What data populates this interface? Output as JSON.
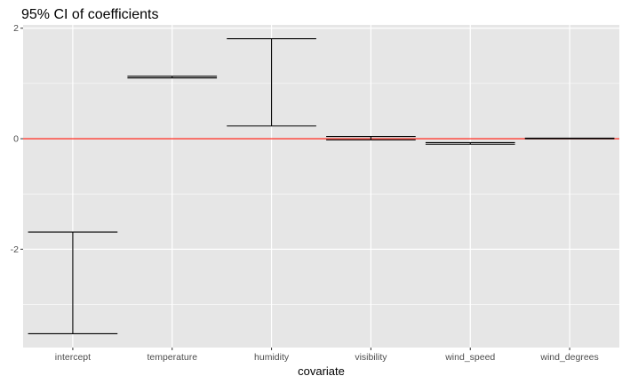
{
  "chart_data": {
    "type": "errorbar",
    "title": "95% CI of coefficients",
    "xlabel": "covariate",
    "ylabel": "",
    "categories": [
      "intercept",
      "temperature",
      "humidity",
      "visibility",
      "wind_speed",
      "wind_degrees"
    ],
    "intervals": [
      {
        "lower": -3.53,
        "upper": -1.69
      },
      {
        "lower": 1.1,
        "upper": 1.13
      },
      {
        "lower": 0.23,
        "upper": 1.81
      },
      {
        "lower": -0.02,
        "upper": 0.04
      },
      {
        "lower": -0.1,
        "upper": -0.07
      },
      {
        "lower": 0.0,
        "upper": 0.01
      }
    ],
    "yticks": [
      -2,
      0,
      2
    ],
    "ylim": [
      -3.78,
      2.06
    ],
    "reference_line": {
      "y": 0,
      "color": "#ff3b30"
    },
    "grid": true,
    "colors": {
      "panel": "#e6e6e6",
      "grid": "#ffffff",
      "bar": "#000000"
    }
  }
}
